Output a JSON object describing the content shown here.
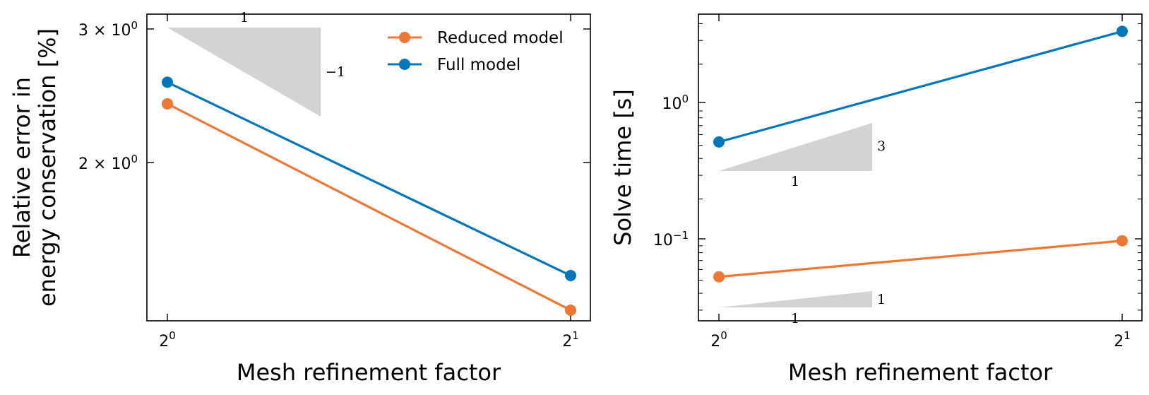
{
  "chart_data": [
    {
      "type": "line",
      "xlabel": "Mesh refinement factor",
      "ylabel_line1": "Relative error in",
      "ylabel_line2": "energy conservation [%]",
      "x": [
        1,
        2
      ],
      "x_scale": "log2",
      "y_scale": "log",
      "ylim": [
        1.22,
        3.1
      ],
      "xtick_labels": [
        {
          "base": "2",
          "exp": "0"
        },
        {
          "base": "2",
          "exp": "1"
        }
      ],
      "ytick_labels": [
        {
          "value": 3,
          "base": "3 × 10",
          "exp": "0"
        },
        {
          "value": 2,
          "base": "2 × 10",
          "exp": "0"
        }
      ],
      "series": [
        {
          "name": "Reduced model",
          "color": "#ee7733",
          "values": [
            2.36,
            1.26
          ]
        },
        {
          "name": "Full model",
          "color": "#0077bb",
          "values": [
            2.52,
            1.4
          ]
        }
      ],
      "legend_position": "top-right",
      "slope_triangle": {
        "run_label": "1",
        "rise_label": "−1"
      }
    },
    {
      "type": "line",
      "xlabel": "Mesh refinement factor",
      "ylabel": "Solve time [s]",
      "x": [
        1,
        2
      ],
      "x_scale": "log2",
      "y_scale": "log",
      "ylim": [
        0.025,
        4.7
      ],
      "xtick_labels": [
        {
          "base": "2",
          "exp": "0"
        },
        {
          "base": "2",
          "exp": "1"
        }
      ],
      "ytick_labels": [
        {
          "value": 1,
          "base": "10",
          "exp": "0"
        },
        {
          "value": 0.1,
          "base": "10",
          "exp": "−1"
        }
      ],
      "series": [
        {
          "name": "Reduced model",
          "color": "#ee7733",
          "values": [
            0.053,
            0.098
          ]
        },
        {
          "name": "Full model",
          "color": "#0077bb",
          "values": [
            0.53,
            3.5
          ]
        }
      ],
      "slope_triangles": [
        {
          "run_label": "1",
          "rise_label": "3"
        },
        {
          "run_label": "1",
          "rise_label": "1"
        }
      ]
    }
  ]
}
